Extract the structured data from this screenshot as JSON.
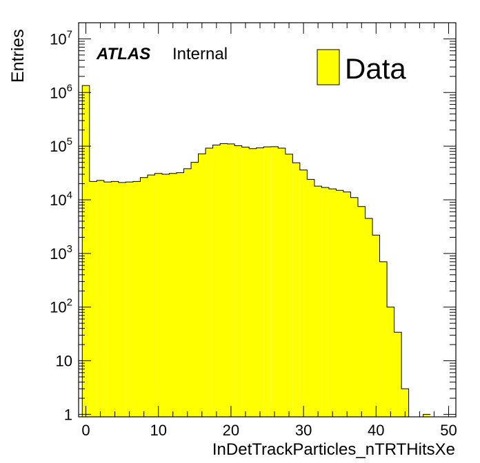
{
  "chart_data": {
    "type": "histogram",
    "title": "",
    "xlabel": "InDetTrackParticles_nTRTHitsXe",
    "ylabel": "Entries",
    "y_scale": "log",
    "xlim": [
      -1,
      51
    ],
    "ylim": [
      0.9,
      20000000
    ],
    "x_ticks": [
      "0",
      "10",
      "20",
      "30",
      "40",
      "50"
    ],
    "y_ticks": [
      {
        "base": "1",
        "exp": ""
      },
      {
        "base": "10",
        "exp": ""
      },
      {
        "base": "10",
        "exp": "2"
      },
      {
        "base": "10",
        "exp": "3"
      },
      {
        "base": "10",
        "exp": "4"
      },
      {
        "base": "10",
        "exp": "5"
      },
      {
        "base": "10",
        "exp": "6"
      },
      {
        "base": "10",
        "exp": "7"
      }
    ],
    "bin_width": 1,
    "bin_start": -0.5,
    "series": [
      {
        "name": "Data",
        "color": "#ffff00",
        "values": [
          1350000,
          22000,
          23000,
          21500,
          22000,
          21000,
          21500,
          22000,
          26000,
          29000,
          31000,
          30000,
          31000,
          32000,
          38000,
          50000,
          72000,
          92000,
          105000,
          112000,
          110000,
          102000,
          96000,
          90000,
          93000,
          97000,
          98000,
          92000,
          71000,
          49000,
          36000,
          24000,
          18000,
          17000,
          16000,
          15000,
          14000,
          11000,
          7500,
          4500,
          2200,
          700,
          100,
          34,
          3,
          0.6,
          0,
          1
        ]
      }
    ],
    "legend_position": "top-right",
    "annotation": {
      "bold": "ATLAS",
      "normal": "Internal"
    }
  }
}
